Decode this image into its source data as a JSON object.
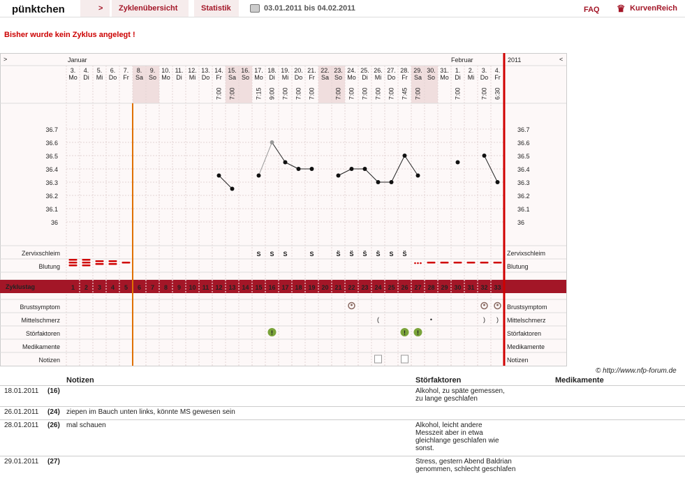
{
  "header": {
    "app_name": "pünktchen",
    "nav_arrow": ">",
    "tabs": [
      "Zyklenübersicht",
      "Statistik"
    ],
    "date_range": "03.01.2011 bis 04.02.2011",
    "faq": "FAQ",
    "brand": "KurvenReich"
  },
  "message": "Bisher wurde kein Zyklus angelegt !",
  "chart": {
    "prev_arrow": ">",
    "next_arrow": "<",
    "month_left": "Januar",
    "month_right": "Februar",
    "year": "2011",
    "days": [
      {
        "d": "3.",
        "w": "Mo",
        "t": ""
      },
      {
        "d": "4.",
        "w": "Di",
        "t": ""
      },
      {
        "d": "5.",
        "w": "Mi",
        "t": ""
      },
      {
        "d": "6.",
        "w": "Do",
        "t": ""
      },
      {
        "d": "7.",
        "w": "Fr",
        "t": ""
      },
      {
        "d": "8.",
        "w": "Sa",
        "t": ""
      },
      {
        "d": "9.",
        "w": "So",
        "t": ""
      },
      {
        "d": "10.",
        "w": "Mo",
        "t": ""
      },
      {
        "d": "11.",
        "w": "Di",
        "t": ""
      },
      {
        "d": "12.",
        "w": "Mi",
        "t": ""
      },
      {
        "d": "13.",
        "w": "Do",
        "t": ""
      },
      {
        "d": "14.",
        "w": "Fr",
        "t": "7:00"
      },
      {
        "d": "15.",
        "w": "Sa",
        "t": "7:00"
      },
      {
        "d": "16.",
        "w": "So",
        "t": ""
      },
      {
        "d": "17.",
        "w": "Mo",
        "t": "7:15"
      },
      {
        "d": "18.",
        "w": "Di",
        "t": "9:00"
      },
      {
        "d": "19.",
        "w": "Mi",
        "t": "7:00"
      },
      {
        "d": "20.",
        "w": "Do",
        "t": "7:00"
      },
      {
        "d": "21.",
        "w": "Fr",
        "t": "7:00"
      },
      {
        "d": "22.",
        "w": "Sa",
        "t": ""
      },
      {
        "d": "23.",
        "w": "So",
        "t": "7:00"
      },
      {
        "d": "24.",
        "w": "Mo",
        "t": "7:00"
      },
      {
        "d": "25.",
        "w": "Di",
        "t": "7:00"
      },
      {
        "d": "26.",
        "w": "Mi",
        "t": "7:00"
      },
      {
        "d": "27.",
        "w": "Do",
        "t": "7:00"
      },
      {
        "d": "28.",
        "w": "Fr",
        "t": "7:45"
      },
      {
        "d": "29.",
        "w": "Sa",
        "t": "7:00"
      },
      {
        "d": "30.",
        "w": "So",
        "t": ""
      },
      {
        "d": "31.",
        "w": "Mo",
        "t": ""
      },
      {
        "d": "1.",
        "w": "Di",
        "t": "7:00"
      },
      {
        "d": "2.",
        "w": "Mi",
        "t": ""
      },
      {
        "d": "3.",
        "w": "Do",
        "t": "7:00"
      },
      {
        "d": "4.",
        "w": "Fr",
        "t": "6:30"
      }
    ],
    "y_ticks": [
      "36.7",
      "36.6",
      "36.5",
      "36.4",
      "36.3",
      "36.2",
      "36.1",
      "36"
    ],
    "row_labels": {
      "zervix": "Zervixschleim",
      "blutung": "Blutung",
      "zyklustag": "Zyklustag",
      "brust": "Brustsymptom",
      "mittel": "Mittelschmerz",
      "stoer": "Störfaktoren",
      "medi": "Medikamente",
      "notiz": "Notizen"
    },
    "cycle_days": [
      "1",
      "2",
      "3",
      "4",
      "5",
      "6",
      "7",
      "8",
      "9",
      "10",
      "11",
      "12",
      "13",
      "14",
      "15",
      "16",
      "17",
      "18",
      "19",
      "20",
      "21",
      "22",
      "23",
      "24",
      "25",
      "26",
      "27",
      "28",
      "29",
      "30",
      "31",
      "32",
      "33"
    ],
    "zervix": [
      "",
      "",
      "",
      "",
      "",
      "",
      "",
      "",
      "",
      "",
      "",
      "",
      "",
      "",
      "S",
      "S",
      "S",
      "",
      "S",
      "",
      "S̈",
      "S̈",
      "S̈",
      "S̈",
      "S",
      "S̈",
      "",
      "",
      "",
      "",
      "",
      "",
      ""
    ],
    "colors": {
      "accent": "#a31627",
      "orange": "#e07000",
      "red": "#d00000"
    }
  },
  "chart_data": {
    "type": "line",
    "x": [
      "03.01",
      "04.01",
      "05.01",
      "06.01",
      "07.01",
      "08.01",
      "09.01",
      "10.01",
      "11.01",
      "12.01",
      "13.01",
      "14.01",
      "15.01",
      "16.01",
      "17.01",
      "18.01",
      "19.01",
      "20.01",
      "21.01",
      "22.01",
      "23.01",
      "24.01",
      "25.01",
      "26.01",
      "27.01",
      "28.01",
      "29.01",
      "30.01",
      "31.01",
      "01.02",
      "02.02",
      "03.02",
      "04.02"
    ],
    "series": [
      {
        "values": [
          null,
          null,
          null,
          null,
          null,
          null,
          null,
          null,
          null,
          null,
          null,
          36.35,
          36.25,
          null,
          36.35,
          36.6,
          36.45,
          36.4,
          36.4,
          null,
          36.35,
          36.4,
          36.4,
          36.3,
          36.3,
          36.5,
          36.35,
          null,
          null,
          36.45,
          null,
          36.5,
          36.3
        ]
      }
    ],
    "ylim": [
      36.0,
      36.7
    ],
    "grid": true
  },
  "notes": {
    "headers": {
      "notizen": "Notizen",
      "stoer": "Störfaktoren",
      "medi": "Medikamente"
    },
    "rows": [
      {
        "date": "18.01.2011",
        "day": "(16)",
        "note": "",
        "stoer": [
          "Alkohol, zu späte gemessen,",
          "zu lange geschlafen"
        ]
      },
      {
        "date": "26.01.2011",
        "day": "(24)",
        "note": "ziepen im Bauch unten links, könnte MS gewesen sein",
        "stoer": []
      },
      {
        "date": "28.01.2011",
        "day": "(26)",
        "note": "mal schauen",
        "stoer": [
          "Alkohol, leicht andere",
          "Messzeit aber in etwa",
          "gleichlange geschlafen wie",
          "sonst."
        ]
      },
      {
        "date": "29.01.2011",
        "day": "(27)",
        "note": "",
        "stoer": [
          "Stress, gestern Abend Baldrian",
          "genommen, schlecht geschlafen"
        ]
      }
    ]
  },
  "copyright": "© http://www.nfp-forum.de"
}
